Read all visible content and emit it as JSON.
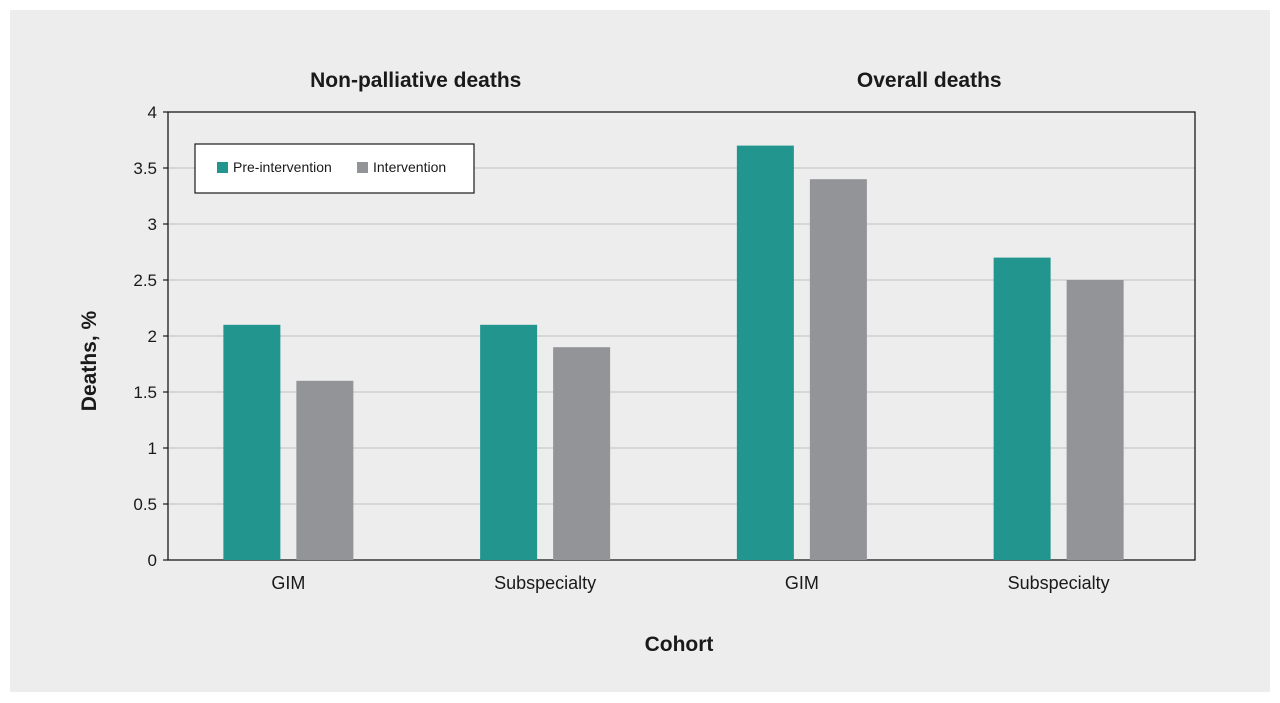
{
  "chart_data": {
    "type": "bar",
    "groups": [
      {
        "title": "Non-palliative deaths",
        "categories": [
          "GIM",
          "Subspecialty"
        ]
      },
      {
        "title": "Overall deaths",
        "categories": [
          "GIM",
          "Subspecialty"
        ]
      }
    ],
    "series": [
      {
        "name": "Pre-intervention",
        "color": "#22958e",
        "values": [
          2.1,
          2.1,
          3.7,
          2.7
        ]
      },
      {
        "name": "Intervention",
        "color": "#939498",
        "values": [
          1.6,
          1.9,
          3.4,
          2.5
        ]
      }
    ],
    "xlabel": "Cohort",
    "ylabel": "Deaths, %",
    "ylim": [
      0,
      4
    ],
    "yticks": [
      "0",
      "0.5",
      "1",
      "1.5",
      "2",
      "2.5",
      "3",
      "3.5",
      "4"
    ],
    "grid": true,
    "legend_position": "top-left"
  }
}
